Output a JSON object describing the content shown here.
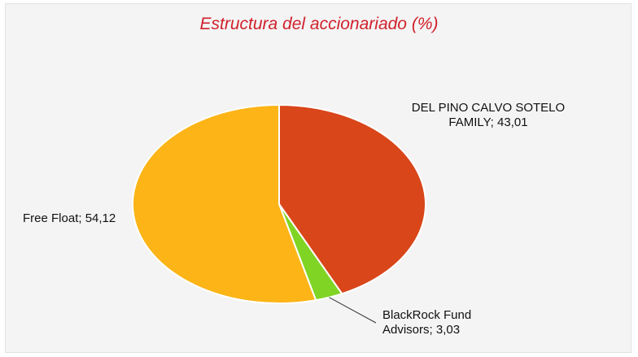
{
  "chart_data": {
    "type": "pie",
    "title": "Estructura del accionariado (%)",
    "categories": [
      "DEL PINO CALVO SOTELO FAMILY;",
      "BlackRock Fund Advisors;",
      "Free Float;"
    ],
    "values": [
      43.01,
      3.03,
      54.12
    ],
    "value_labels": [
      "43,01",
      "3,03",
      "54,12"
    ],
    "colors": [
      "#d9461a",
      "#80d424",
      "#fcb417"
    ]
  }
}
